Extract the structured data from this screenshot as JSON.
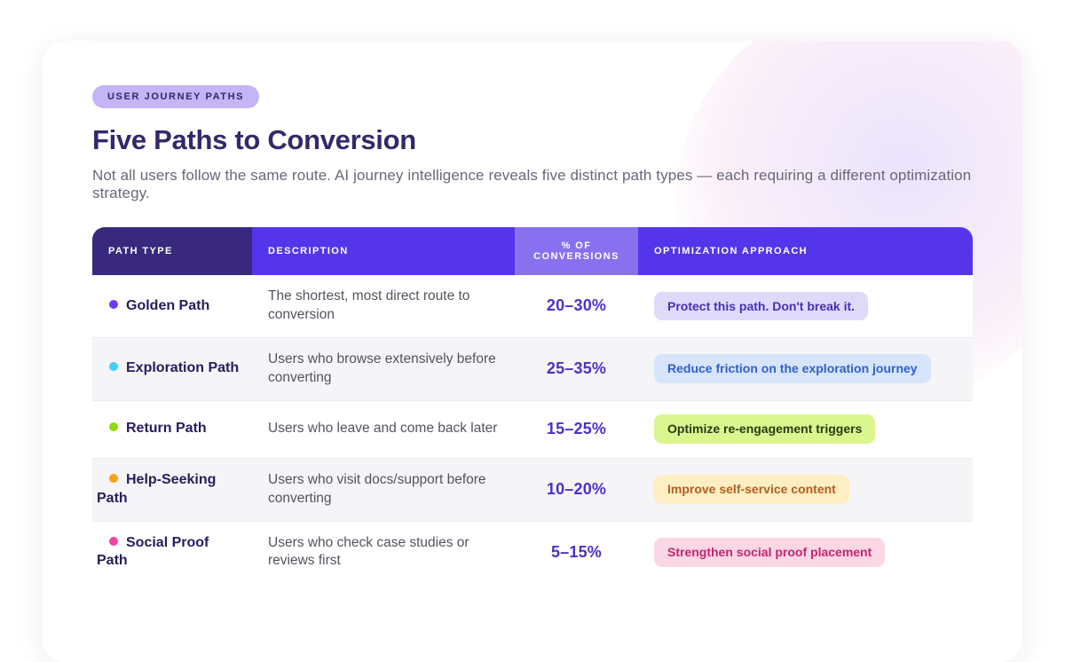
{
  "page": {
    "eyebrow": "USER JOURNEY PATHS",
    "title": "Five Paths to Conversion",
    "subtitle": "Not all users follow the same route. AI journey intelligence reveals five distinct path types — each requiring a different optimization strategy."
  },
  "table": {
    "columns": {
      "path_type": "PATH TYPE",
      "description": "DESCRIPTION",
      "conversions": "% OF CONVERSIONS",
      "approach": "OPTIMIZATION APPROACH"
    },
    "header_colors": {
      "path_type_bg": "#39297e",
      "primary_bg": "#5435e9",
      "conversions_bg": "#8871ee"
    },
    "rows": [
      {
        "path": "Golden Path",
        "dot_color": "#6a3df2",
        "description": "The shortest, most direct route to conversion",
        "conversions": "20–30%",
        "approach": "Protect this path. Don't break it.",
        "approach_bg": "#dfdafa",
        "approach_color": "#4531b4"
      },
      {
        "path": "Exploration Path",
        "dot_color": "#3fd0fa",
        "description": "Users who browse extensively before converting",
        "conversions": "25–35%",
        "approach": "Reduce friction on the exploration journey",
        "approach_bg": "#d6e5fb",
        "approach_color": "#2f5fc8"
      },
      {
        "path": "Return Path",
        "dot_color": "#8ed916",
        "description": "Users who leave and come back later",
        "conversions": "15–25%",
        "approach": "Optimize re-engagement triggers",
        "approach_bg": "#d9f68f",
        "approach_color": "#2b3a12"
      },
      {
        "path": "Help-Seeking Path",
        "dot_color": "#f9a21a",
        "description": "Users who visit docs/support before converting",
        "conversions": "10–20%",
        "approach": "Improve self-service content",
        "approach_bg": "#fdeec3",
        "approach_color": "#b45e20"
      },
      {
        "path": "Social Proof Path",
        "dot_color": "#f043a8",
        "description": "Users who check case studies or reviews first",
        "conversions": "5–15%",
        "approach": "Strengthen social proof placement",
        "approach_bg": "#fbd7e5",
        "approach_color": "#c32572"
      }
    ]
  }
}
